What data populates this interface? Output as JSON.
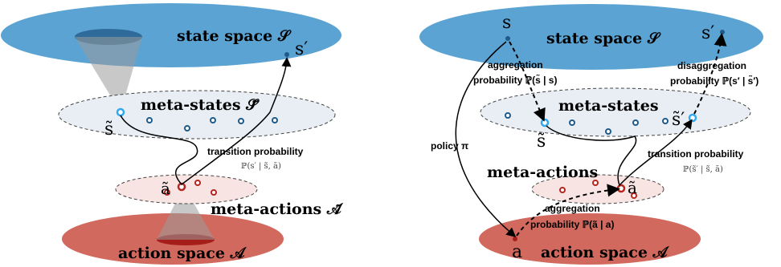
{
  "colors": {
    "state_space": "#5aa3d3",
    "state_space_dark": "#2e6b9a",
    "action_space": "#d2695e",
    "action_space_dark": "#a51e1a",
    "meta_state_fill": "#e8eef3",
    "meta_action_fill": "#f7e4e3",
    "state_dot": "#1e5a8a",
    "action_dot": "#b8241e",
    "highlight_state": "#32a8ef",
    "arrow": "#000000"
  },
  "left": {
    "state_space_label": "state space 𝒮",
    "action_space_label": "action space 𝒜",
    "meta_states_label": "meta-states 𝒮̃",
    "meta_actions_label": "meta-actions 𝒜̃",
    "s_tilde": "s̃",
    "s_prime": "s′",
    "a_tilde": "ã",
    "transition_label": "transition probability",
    "transition_formula": "ℙ(s′ | s̃, ã)"
  },
  "right": {
    "state_space_label": "state space 𝒮",
    "action_space_label": "action space 𝒜",
    "meta_states_label": "meta-states",
    "meta_actions_label": "meta-actions",
    "s": "s",
    "s_prime": "s′",
    "s_tilde": "s̃",
    "s_tilde_prime": "s̃′",
    "a": "a",
    "a_tilde": "ã",
    "policy_label": "policy π",
    "aggregation_top_1": "aggregation",
    "aggregation_top_2": "probability ℙ(s̃ | s)",
    "disaggregation_1": "disaggregation",
    "disaggregation_2": "probability ℙ(s′ | s̃′)",
    "transition_label": "transition probability",
    "transition_formula": "ℙ(s̃′ | s̃, ã)",
    "aggregation_bottom_1": "aggregation",
    "aggregation_bottom_2": "probability ℙ(ã | a)"
  }
}
